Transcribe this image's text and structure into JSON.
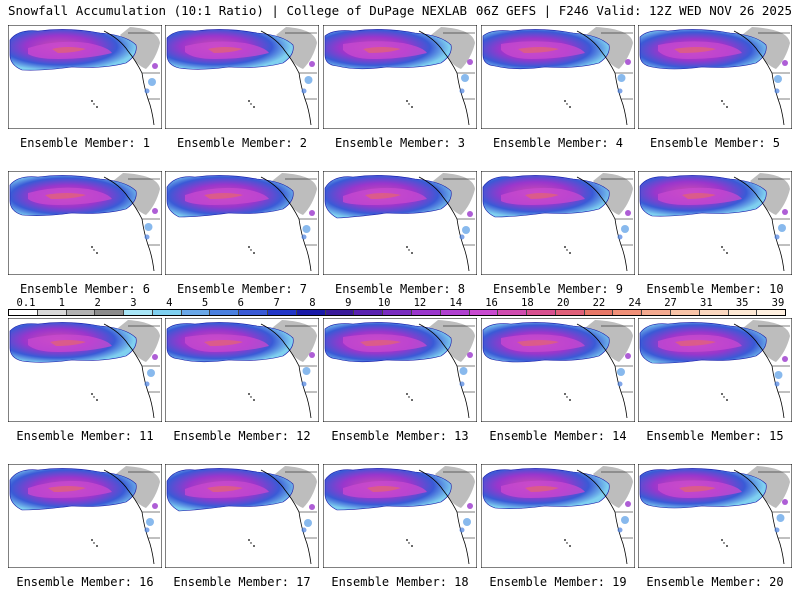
{
  "header": {
    "title_left": "Snowfall Accumulation (10:1 Ratio) | College of DuPage NEXLAB",
    "title_right": "06Z GEFS | F246 Valid: 12Z WED NOV 26 2025"
  },
  "colorbar": {
    "ticks": [
      "0.1",
      "1",
      "2",
      "3",
      "4",
      "5",
      "6",
      "7",
      "8",
      "9",
      "10",
      "12",
      "14",
      "16",
      "18",
      "20",
      "22",
      "24",
      "27",
      "31",
      "35",
      "39"
    ],
    "colors": [
      "#ffffff",
      "#d9d9d9",
      "#b3b3b3",
      "#8c8c8c",
      "#a8e6f7",
      "#7fd0f0",
      "#6aa8e8",
      "#4a80e0",
      "#3a5ad6",
      "#2236c8",
      "#1a1aa8",
      "#3a1a9a",
      "#5a22b0",
      "#7a2cc0",
      "#9a36cc",
      "#b040d0",
      "#c84ad0",
      "#d04cb0",
      "#d85090",
      "#e0607a",
      "#e87868",
      "#f09078",
      "#f4aa90",
      "#f8c4a8",
      "#fbd8c0",
      "#fde8d4",
      "#fff0e0"
    ]
  },
  "panels": [
    {
      "label": "Ensemble Member: 1"
    },
    {
      "label": "Ensemble Member: 2"
    },
    {
      "label": "Ensemble Member: 3"
    },
    {
      "label": "Ensemble Member: 4"
    },
    {
      "label": "Ensemble Member: 5"
    },
    {
      "label": "Ensemble Member: 6"
    },
    {
      "label": "Ensemble Member: 7"
    },
    {
      "label": "Ensemble Member: 8"
    },
    {
      "label": "Ensemble Member: 9"
    },
    {
      "label": "Ensemble Member: 10"
    },
    {
      "label": "Ensemble Member: 11"
    },
    {
      "label": "Ensemble Member: 12"
    },
    {
      "label": "Ensemble Member: 13"
    },
    {
      "label": "Ensemble Member: 14"
    },
    {
      "label": "Ensemble Member: 15"
    },
    {
      "label": "Ensemble Member: 16"
    },
    {
      "label": "Ensemble Member: 17"
    },
    {
      "label": "Ensemble Member: 18"
    },
    {
      "label": "Ensemble Member: 19"
    },
    {
      "label": "Ensemble Member: 20"
    }
  ]
}
